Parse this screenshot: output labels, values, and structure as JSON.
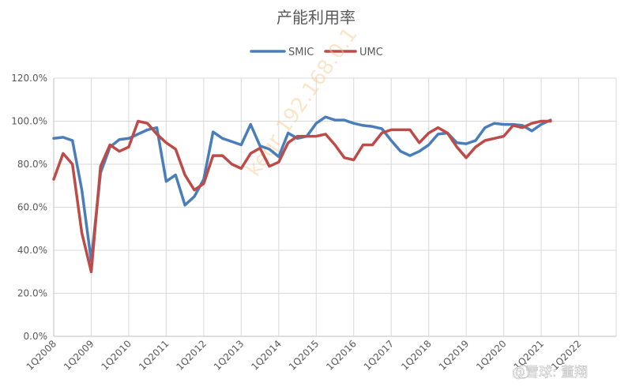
{
  "watermark": "keqr 192.168.0.1",
  "brand": "@雪球: 董翔",
  "chart_data": {
    "type": "line",
    "title": "产能利用率",
    "legend_position": "top",
    "grid": true,
    "ylim": [
      0,
      120
    ],
    "y_ticks": [
      "0.0%",
      "20.0%",
      "40.0%",
      "60.0%",
      "80.0%",
      "100.0%",
      "120.0%"
    ],
    "x_tick_labels": [
      "1Q2008",
      "1Q2009",
      "1Q2010",
      "1Q2011",
      "1Q2012",
      "1Q2013",
      "1Q2014",
      "1Q2015",
      "1Q2016",
      "1Q2017",
      "1Q2018",
      "1Q2019",
      "1Q2020",
      "1Q2021",
      "1Q2022"
    ],
    "series": [
      {
        "name": "SMIC",
        "color": "#4a7ebb",
        "values": [
          92,
          92.5,
          91,
          68,
          35,
          76,
          88,
          91.5,
          92,
          94,
          96,
          97,
          72,
          75,
          61,
          65,
          73,
          95,
          92,
          90.5,
          89,
          98.5,
          88.5,
          87,
          83.5,
          94.5,
          92,
          93,
          99,
          102,
          100.5,
          100.5,
          99,
          98,
          97.5,
          96.5,
          91,
          86,
          84,
          86,
          89,
          94,
          94.5,
          90,
          89.5,
          91,
          97,
          99,
          98.5,
          98.5,
          98,
          95.5,
          98.5,
          100.5
        ]
      },
      {
        "name": "UMC",
        "color": "#be4b48",
        "values": [
          73,
          85,
          80,
          48,
          30,
          79,
          89,
          86,
          88,
          100,
          99,
          94,
          90,
          87,
          75,
          68,
          71,
          84,
          84,
          80,
          78,
          85,
          87.5,
          79,
          81,
          90,
          93,
          93,
          93,
          94,
          89,
          83,
          82,
          89,
          89,
          94.5,
          96,
          96,
          96,
          90,
          94.5,
          97,
          94.5,
          88,
          83,
          88,
          91,
          92,
          93,
          98,
          97,
          99,
          100,
          100
        ]
      }
    ]
  }
}
